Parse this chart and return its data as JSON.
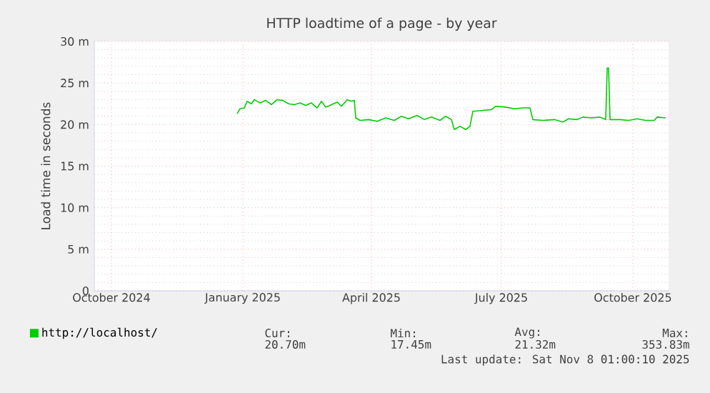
{
  "chart_data": {
    "type": "line",
    "title": "HTTP loadtime of a page - by year",
    "ylabel": "Load time in seconds",
    "x": [
      "2024-12-28",
      "2024-12-30",
      "2025-01-02",
      "2025-01-04",
      "2025-01-07",
      "2025-01-09",
      "2025-01-13",
      "2025-01-17",
      "2025-01-21",
      "2025-01-25",
      "2025-01-29",
      "2025-02-02",
      "2025-02-06",
      "2025-02-10",
      "2025-02-14",
      "2025-02-18",
      "2025-02-22",
      "2025-02-25",
      "2025-02-28",
      "2025-03-04",
      "2025-03-08",
      "2025-03-11",
      "2025-03-15",
      "2025-03-18",
      "2025-03-20",
      "2025-03-21",
      "2025-03-24",
      "2025-03-30",
      "2025-04-05",
      "2025-04-11",
      "2025-04-17",
      "2025-04-22",
      "2025-04-27",
      "2025-05-03",
      "2025-05-08",
      "2025-05-13",
      "2025-05-19",
      "2025-05-23",
      "2025-05-27",
      "2025-05-29",
      "2025-06-02",
      "2025-06-06",
      "2025-06-09",
      "2025-06-11",
      "2025-06-18",
      "2025-06-24",
      "2025-06-27",
      "2025-07-04",
      "2025-07-10",
      "2025-07-16",
      "2025-07-21",
      "2025-07-23",
      "2025-07-30",
      "2025-08-07",
      "2025-08-13",
      "2025-08-17",
      "2025-08-23",
      "2025-08-27",
      "2025-09-02",
      "2025-09-08",
      "2025-09-12",
      "2025-09-13",
      "2025-09-14",
      "2025-09-15",
      "2025-09-22",
      "2025-09-28",
      "2025-10-04",
      "2025-10-10",
      "2025-10-16",
      "2025-10-18",
      "2025-10-24"
    ],
    "series": [
      {
        "name": "http://localhost/",
        "color": "#00cc00",
        "values": [
          21.3,
          21.9,
          22.0,
          22.8,
          22.5,
          23.0,
          22.6,
          22.9,
          22.4,
          23.0,
          22.9,
          22.5,
          22.4,
          22.6,
          22.3,
          22.6,
          22.0,
          22.8,
          22.1,
          22.4,
          22.7,
          22.2,
          23.0,
          22.8,
          22.9,
          20.8,
          20.5,
          20.6,
          20.4,
          20.8,
          20.5,
          21.0,
          20.7,
          21.1,
          20.6,
          20.9,
          20.5,
          21.0,
          20.6,
          19.4,
          19.8,
          19.4,
          19.8,
          21.6,
          21.7,
          21.8,
          22.2,
          22.1,
          21.9,
          22.0,
          22.0,
          20.6,
          20.5,
          20.6,
          20.3,
          20.7,
          20.6,
          20.9,
          20.8,
          20.9,
          20.6,
          26.8,
          26.8,
          20.6,
          20.6,
          20.5,
          20.7,
          20.5,
          20.5,
          20.9,
          20.8
        ]
      }
    ],
    "xlim": [
      "2024-09-19",
      "2025-10-26"
    ],
    "xticks": [
      {
        "value": "2024-10-01",
        "label": "October 2024"
      },
      {
        "value": "2025-01-01",
        "label": "January 2025"
      },
      {
        "value": "2025-04-01",
        "label": "April 2025"
      },
      {
        "value": "2025-07-01",
        "label": "July 2025"
      },
      {
        "value": "2025-10-01",
        "label": "October 2025"
      }
    ],
    "ylim": [
      0,
      30
    ],
    "yticks": [
      0,
      {
        "value": 5,
        "label": "5 m"
      },
      {
        "value": 10,
        "label": "10 m"
      },
      {
        "value": 15,
        "label": "15 m"
      },
      {
        "value": 20,
        "label": "20 m"
      },
      {
        "value": 25,
        "label": "25 m"
      },
      {
        "value": 30,
        "label": "30 m"
      }
    ],
    "grid": true,
    "legend": "bottom",
    "marker": "none",
    "line_style": "solid",
    "annotations": [
      "Cur:",
      "20.70m",
      "Min:",
      "17.45m",
      "Avg:",
      "21.32m",
      "Max:",
      "353.83m",
      "Last update: Sat Nov  8 01:00:10 2025"
    ]
  }
}
